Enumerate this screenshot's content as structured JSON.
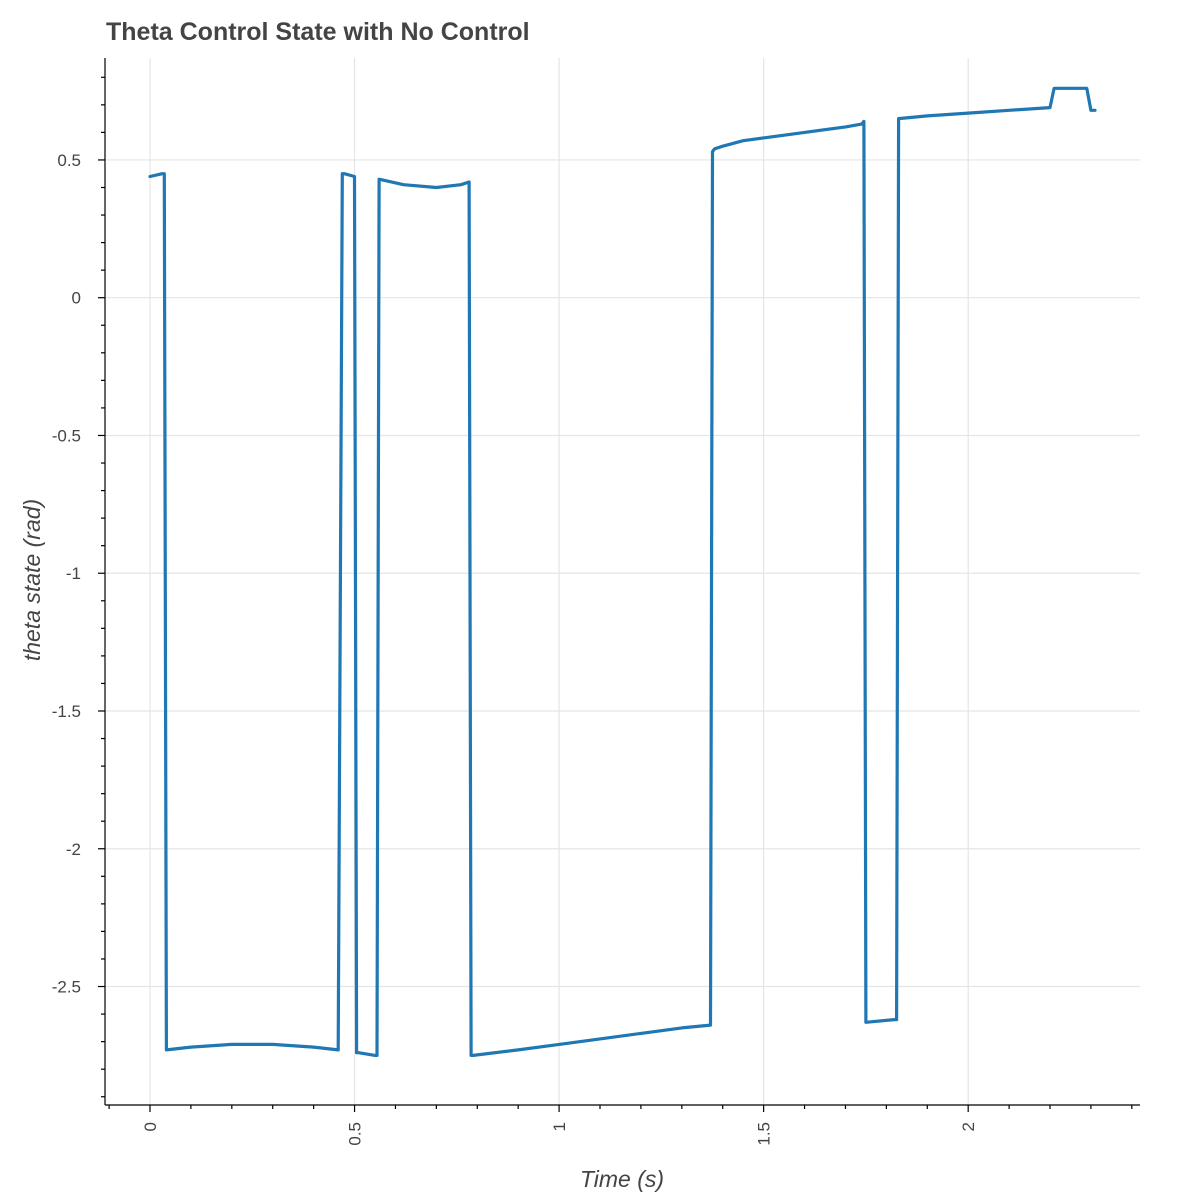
{
  "chart_data": {
    "type": "line",
    "title": "Theta Control State with No Control",
    "xlabel": "Time (s)",
    "ylabel": "theta state (rad)",
    "xlim": [
      -0.11,
      2.42
    ],
    "ylim": [
      -2.93,
      0.87
    ],
    "grid": true,
    "legend": "none",
    "x_ticks": [
      {
        "value": 0,
        "label": "0"
      },
      {
        "value": 0.5,
        "label": "0.5"
      },
      {
        "value": 1,
        "label": "1"
      },
      {
        "value": 1.5,
        "label": "1.5"
      },
      {
        "value": 2,
        "label": "2"
      }
    ],
    "y_ticks": [
      {
        "value": 0.5,
        "label": "0.5"
      },
      {
        "value": 0,
        "label": "0"
      },
      {
        "value": -0.5,
        "label": "-0.5"
      },
      {
        "value": -1,
        "label": "-1"
      },
      {
        "value": -1.5,
        "label": "-1.5"
      },
      {
        "value": -2,
        "label": "-2"
      },
      {
        "value": -2.5,
        "label": "-2.5"
      }
    ],
    "series": [
      {
        "color": "#1f77b4",
        "x": [
          0,
          0.03,
          0.035,
          0.04,
          0.1,
          0.2,
          0.3,
          0.4,
          0.46,
          0.47,
          0.475,
          0.5,
          0.505,
          0.51,
          0.55,
          0.555,
          0.56,
          0.62,
          0.7,
          0.76,
          0.78,
          0.785,
          0.79,
          0.9,
          1.0,
          1.1,
          1.2,
          1.3,
          1.37,
          1.375,
          1.38,
          1.4,
          1.45,
          1.5,
          1.6,
          1.7,
          1.74,
          1.745,
          1.75,
          1.82,
          1.825,
          1.83,
          1.9,
          2.0,
          2.1,
          2.2,
          2.21,
          2.25,
          2.29,
          2.3,
          2.31
        ],
        "y": [
          0.44,
          0.45,
          0.45,
          -2.73,
          -2.72,
          -2.71,
          -2.71,
          -2.72,
          -2.73,
          0.45,
          0.45,
          0.44,
          -2.74,
          -2.74,
          -2.75,
          -2.75,
          0.43,
          0.41,
          0.4,
          0.41,
          0.42,
          -2.75,
          -2.75,
          -2.73,
          -2.71,
          -2.69,
          -2.67,
          -2.65,
          -2.64,
          0.53,
          0.54,
          0.55,
          0.57,
          0.58,
          0.6,
          0.62,
          0.63,
          0.64,
          -2.63,
          -2.62,
          -2.62,
          0.65,
          0.66,
          0.67,
          0.68,
          0.69,
          0.76,
          0.76,
          0.76,
          0.68,
          0.68
        ]
      }
    ]
  }
}
